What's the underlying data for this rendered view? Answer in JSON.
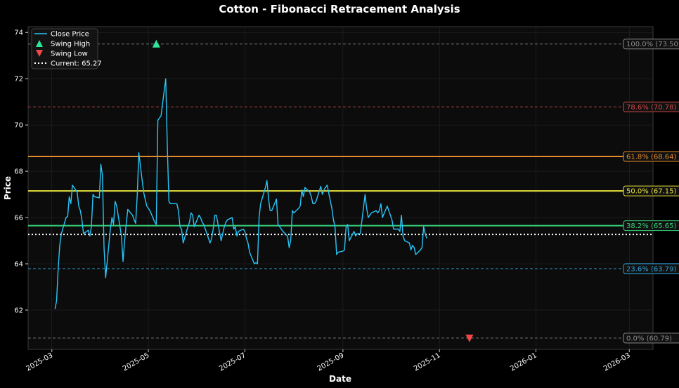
{
  "chart_data": {
    "type": "line",
    "title": "Cotton - Fibonacci Retracement Analysis",
    "xlabel": "Date",
    "ylabel": "Price",
    "ylim": [
      60.3,
      74.25
    ],
    "xlim": [
      "2025-02-14",
      "2026-03-16"
    ],
    "yticks": [
      62,
      64,
      66,
      68,
      70,
      72,
      74
    ],
    "xticks": [
      "2025-03",
      "2025-05",
      "2025-07",
      "2025-09",
      "2025-11",
      "2026-01",
      "2026-03"
    ],
    "xtick_dates": [
      "2025-03-01",
      "2025-05-01",
      "2025-07-01",
      "2025-09-01",
      "2025-11-01",
      "2026-01-01",
      "2026-03-01"
    ],
    "grid": true,
    "legend_position": "top-left",
    "legend": [
      {
        "label": "Close Price",
        "kind": "line",
        "color": "#29c5f6"
      },
      {
        "label": "Swing High",
        "kind": "triangle-up",
        "color": "#2ee89a"
      },
      {
        "label": "Swing Low",
        "kind": "triangle-down",
        "color": "#f04848"
      },
      {
        "label": "Current: 65.27",
        "kind": "dotted",
        "color": "#ffffff"
      }
    ],
    "series": [
      {
        "name": "Close Price",
        "color": "#29c5f6",
        "points": [
          [
            "2025-03-03",
            62.05
          ],
          [
            "2025-03-04",
            62.4
          ],
          [
            "2025-03-05",
            63.8
          ],
          [
            "2025-03-06",
            64.8
          ],
          [
            "2025-03-07",
            65.3
          ],
          [
            "2025-03-10",
            66.0
          ],
          [
            "2025-03-11",
            66.05
          ],
          [
            "2025-03-12",
            66.9
          ],
          [
            "2025-03-13",
            66.6
          ],
          [
            "2025-03-14",
            67.4
          ],
          [
            "2025-03-17",
            67.1
          ],
          [
            "2025-03-18",
            66.5
          ],
          [
            "2025-03-19",
            66.3
          ],
          [
            "2025-03-20",
            65.9
          ],
          [
            "2025-03-21",
            65.3
          ],
          [
            "2025-03-24",
            65.45
          ],
          [
            "2025-03-25",
            65.2
          ],
          [
            "2025-03-26",
            65.6
          ],
          [
            "2025-03-27",
            67.0
          ],
          [
            "2025-03-28",
            66.9
          ],
          [
            "2025-03-31",
            66.85
          ],
          [
            "2025-04-01",
            68.3
          ],
          [
            "2025-04-02",
            67.8
          ],
          [
            "2025-04-03",
            64.7
          ],
          [
            "2025-04-04",
            63.4
          ],
          [
            "2025-04-07",
            65.5
          ],
          [
            "2025-04-08",
            66.0
          ],
          [
            "2025-04-09",
            65.7
          ],
          [
            "2025-04-10",
            66.7
          ],
          [
            "2025-04-11",
            66.5
          ],
          [
            "2025-04-14",
            65.2
          ],
          [
            "2025-04-15",
            64.1
          ],
          [
            "2025-04-16",
            65.0
          ],
          [
            "2025-04-17",
            65.7
          ],
          [
            "2025-04-18",
            66.35
          ],
          [
            "2025-04-21",
            66.1
          ],
          [
            "2025-04-22",
            65.9
          ],
          [
            "2025-04-23",
            65.75
          ],
          [
            "2025-04-24",
            67.0
          ],
          [
            "2025-04-25",
            68.8
          ],
          [
            "2025-04-28",
            67.1
          ],
          [
            "2025-04-29",
            66.8
          ],
          [
            "2025-04-30",
            66.5
          ],
          [
            "2025-05-01",
            66.4
          ],
          [
            "2025-05-02",
            66.3
          ],
          [
            "2025-05-05",
            65.8
          ],
          [
            "2025-05-06",
            65.7
          ],
          [
            "2025-05-07",
            70.2
          ],
          [
            "2025-05-08",
            70.3
          ],
          [
            "2025-05-09",
            70.4
          ],
          [
            "2025-05-12",
            72.0
          ],
          [
            "2025-05-13",
            69.0
          ],
          [
            "2025-05-14",
            66.7
          ],
          [
            "2025-05-15",
            66.6
          ],
          [
            "2025-05-16",
            66.6
          ],
          [
            "2025-05-19",
            66.6
          ],
          [
            "2025-05-20",
            66.3
          ],
          [
            "2025-05-21",
            65.6
          ],
          [
            "2025-05-22",
            65.5
          ],
          [
            "2025-05-23",
            64.9
          ],
          [
            "2025-05-26",
            65.6
          ],
          [
            "2025-05-27",
            65.8
          ],
          [
            "2025-05-28",
            66.2
          ],
          [
            "2025-05-29",
            66.1
          ],
          [
            "2025-05-30",
            65.6
          ],
          [
            "2025-06-02",
            66.1
          ],
          [
            "2025-06-03",
            66.0
          ],
          [
            "2025-06-04",
            65.8
          ],
          [
            "2025-06-05",
            65.7
          ],
          [
            "2025-06-06",
            65.5
          ],
          [
            "2025-06-09",
            64.9
          ],
          [
            "2025-06-10",
            65.1
          ],
          [
            "2025-06-11",
            65.5
          ],
          [
            "2025-06-12",
            66.1
          ],
          [
            "2025-06-13",
            66.1
          ],
          [
            "2025-06-16",
            65.0
          ],
          [
            "2025-06-17",
            65.3
          ],
          [
            "2025-06-18",
            65.6
          ],
          [
            "2025-06-19",
            65.8
          ],
          [
            "2025-06-20",
            65.9
          ],
          [
            "2025-06-23",
            66.0
          ],
          [
            "2025-06-24",
            65.5
          ],
          [
            "2025-06-25",
            65.6
          ],
          [
            "2025-06-26",
            65.2
          ],
          [
            "2025-06-27",
            65.4
          ],
          [
            "2025-06-30",
            65.5
          ],
          [
            "2025-07-01",
            65.4
          ],
          [
            "2025-07-02",
            65.1
          ],
          [
            "2025-07-03",
            64.9
          ],
          [
            "2025-07-04",
            64.5
          ],
          [
            "2025-07-07",
            64.0
          ],
          [
            "2025-07-08",
            64.05
          ],
          [
            "2025-07-09",
            64.0
          ],
          [
            "2025-07-10",
            66.0
          ],
          [
            "2025-07-11",
            66.6
          ],
          [
            "2025-07-14",
            67.3
          ],
          [
            "2025-07-15",
            67.6
          ],
          [
            "2025-07-16",
            66.8
          ],
          [
            "2025-07-17",
            66.3
          ],
          [
            "2025-07-18",
            66.3
          ],
          [
            "2025-07-21",
            66.8
          ],
          [
            "2025-07-22",
            65.7
          ],
          [
            "2025-07-23",
            65.6
          ],
          [
            "2025-07-24",
            65.5
          ],
          [
            "2025-07-25",
            65.4
          ],
          [
            "2025-07-28",
            65.2
          ],
          [
            "2025-07-29",
            64.7
          ],
          [
            "2025-07-30",
            65.0
          ],
          [
            "2025-07-31",
            66.3
          ],
          [
            "2025-08-01",
            66.2
          ],
          [
            "2025-08-04",
            66.4
          ],
          [
            "2025-08-05",
            66.5
          ],
          [
            "2025-08-06",
            67.2
          ],
          [
            "2025-08-07",
            66.9
          ],
          [
            "2025-08-08",
            67.3
          ],
          [
            "2025-08-11",
            67.1
          ],
          [
            "2025-08-12",
            66.9
          ],
          [
            "2025-08-13",
            66.6
          ],
          [
            "2025-08-14",
            66.6
          ],
          [
            "2025-08-15",
            66.7
          ],
          [
            "2025-08-18",
            67.35
          ],
          [
            "2025-08-19",
            67.0
          ],
          [
            "2025-08-20",
            67.2
          ],
          [
            "2025-08-21",
            67.3
          ],
          [
            "2025-08-22",
            67.4
          ],
          [
            "2025-08-25",
            66.4
          ],
          [
            "2025-08-26",
            65.9
          ],
          [
            "2025-08-27",
            65.6
          ],
          [
            "2025-08-28",
            64.4
          ],
          [
            "2025-08-29",
            64.5
          ],
          [
            "2025-09-01",
            64.55
          ],
          [
            "2025-09-02",
            64.6
          ],
          [
            "2025-09-03",
            65.6
          ],
          [
            "2025-09-04",
            65.7
          ],
          [
            "2025-09-05",
            65.0
          ],
          [
            "2025-09-08",
            65.4
          ],
          [
            "2025-09-09",
            65.2
          ],
          [
            "2025-09-10",
            65.3
          ],
          [
            "2025-09-11",
            65.3
          ],
          [
            "2025-09-12",
            65.3
          ],
          [
            "2025-09-15",
            67.0
          ],
          [
            "2025-09-16",
            66.4
          ],
          [
            "2025-09-17",
            66.0
          ],
          [
            "2025-09-18",
            66.1
          ],
          [
            "2025-09-19",
            66.2
          ],
          [
            "2025-09-22",
            66.3
          ],
          [
            "2025-09-23",
            66.2
          ],
          [
            "2025-09-24",
            66.3
          ],
          [
            "2025-09-25",
            66.6
          ],
          [
            "2025-09-26",
            66.0
          ],
          [
            "2025-09-29",
            66.5
          ],
          [
            "2025-09-30",
            66.3
          ],
          [
            "2025-10-01",
            66.1
          ],
          [
            "2025-10-02",
            65.9
          ],
          [
            "2025-10-03",
            65.5
          ],
          [
            "2025-10-06",
            65.5
          ],
          [
            "2025-10-07",
            65.4
          ],
          [
            "2025-10-08",
            66.1
          ],
          [
            "2025-10-09",
            65.2
          ],
          [
            "2025-10-10",
            65.0
          ],
          [
            "2025-10-13",
            64.9
          ],
          [
            "2025-10-14",
            64.6
          ],
          [
            "2025-10-15",
            64.8
          ],
          [
            "2025-10-16",
            64.7
          ],
          [
            "2025-10-17",
            64.4
          ],
          [
            "2025-10-20",
            64.6
          ],
          [
            "2025-10-21",
            64.7
          ],
          [
            "2025-10-22",
            65.6
          ],
          [
            "2025-10-23",
            65.3
          ],
          [
            "2025-10-24",
            65.1
          ]
        ]
      }
    ],
    "fib_levels": [
      {
        "label": "100.0% (73.50)",
        "value": 73.5,
        "color": "#8c8c8c",
        "style": "dashed"
      },
      {
        "label": "78.6% (70.78)",
        "value": 70.78,
        "color": "#d84a4a",
        "style": "dashed"
      },
      {
        "label": "61.8% (68.64)",
        "value": 68.64,
        "color": "#e58a2c",
        "style": "solid"
      },
      {
        "label": "50.0% (67.15)",
        "value": 67.15,
        "color": "#e8e23a",
        "style": "solid"
      },
      {
        "label": "38.2% (65.65)",
        "value": 65.65,
        "color": "#36d27a",
        "style": "solid"
      },
      {
        "label": "23.6% (63.79)",
        "value": 63.79,
        "color": "#2f9fd4",
        "style": "dashed"
      },
      {
        "label": "0.0% (60.79)",
        "value": 60.79,
        "color": "#8c8c8c",
        "style": "dashed"
      }
    ],
    "current_price": 65.27,
    "swing_high": {
      "date": "2025-05-06",
      "value": 73.5
    },
    "swing_low": {
      "date": "2025-11-20",
      "value": 60.79
    }
  }
}
